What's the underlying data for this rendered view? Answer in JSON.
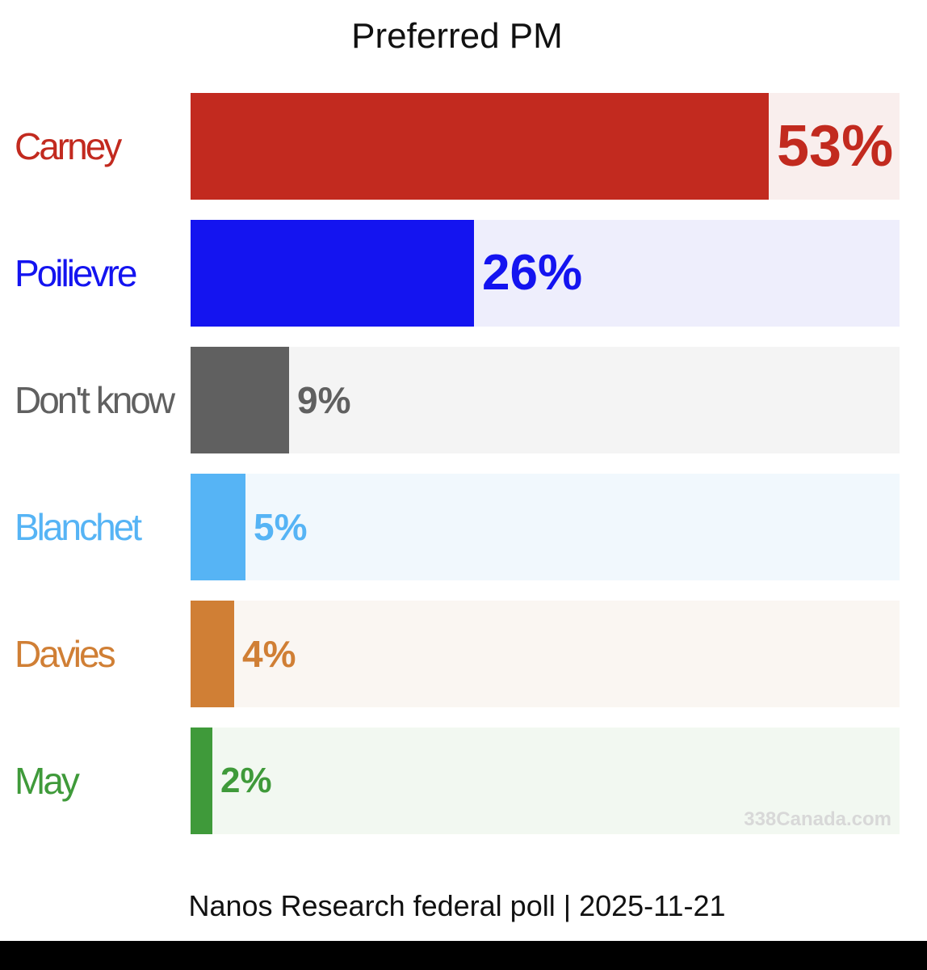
{
  "chart_data": {
    "type": "bar",
    "orientation": "horizontal",
    "title": "Preferred PM",
    "categories": [
      "Carney",
      "Poilievre",
      "Don't know",
      "Blanchet",
      "Davies",
      "May"
    ],
    "values": [
      53,
      26,
      9,
      5,
      4,
      2
    ],
    "value_labels": [
      "53%",
      "26%",
      "9%",
      "5%",
      "4%",
      "2%"
    ],
    "colors": [
      "#c22a1f",
      "#1414f0",
      "#606060",
      "#56b4f5",
      "#d07f35",
      "#3f9a3a"
    ],
    "track_colors": [
      "#f9eeed",
      "#eeeefc",
      "#f4f4f4",
      "#f1f8fd",
      "#faf6f2",
      "#f2f8f1"
    ],
    "xlim": [
      0,
      65
    ],
    "grid": false,
    "legend": "none"
  },
  "watermark": "338Canada.com",
  "footer": "Nanos Research federal poll | 2025-11-21"
}
